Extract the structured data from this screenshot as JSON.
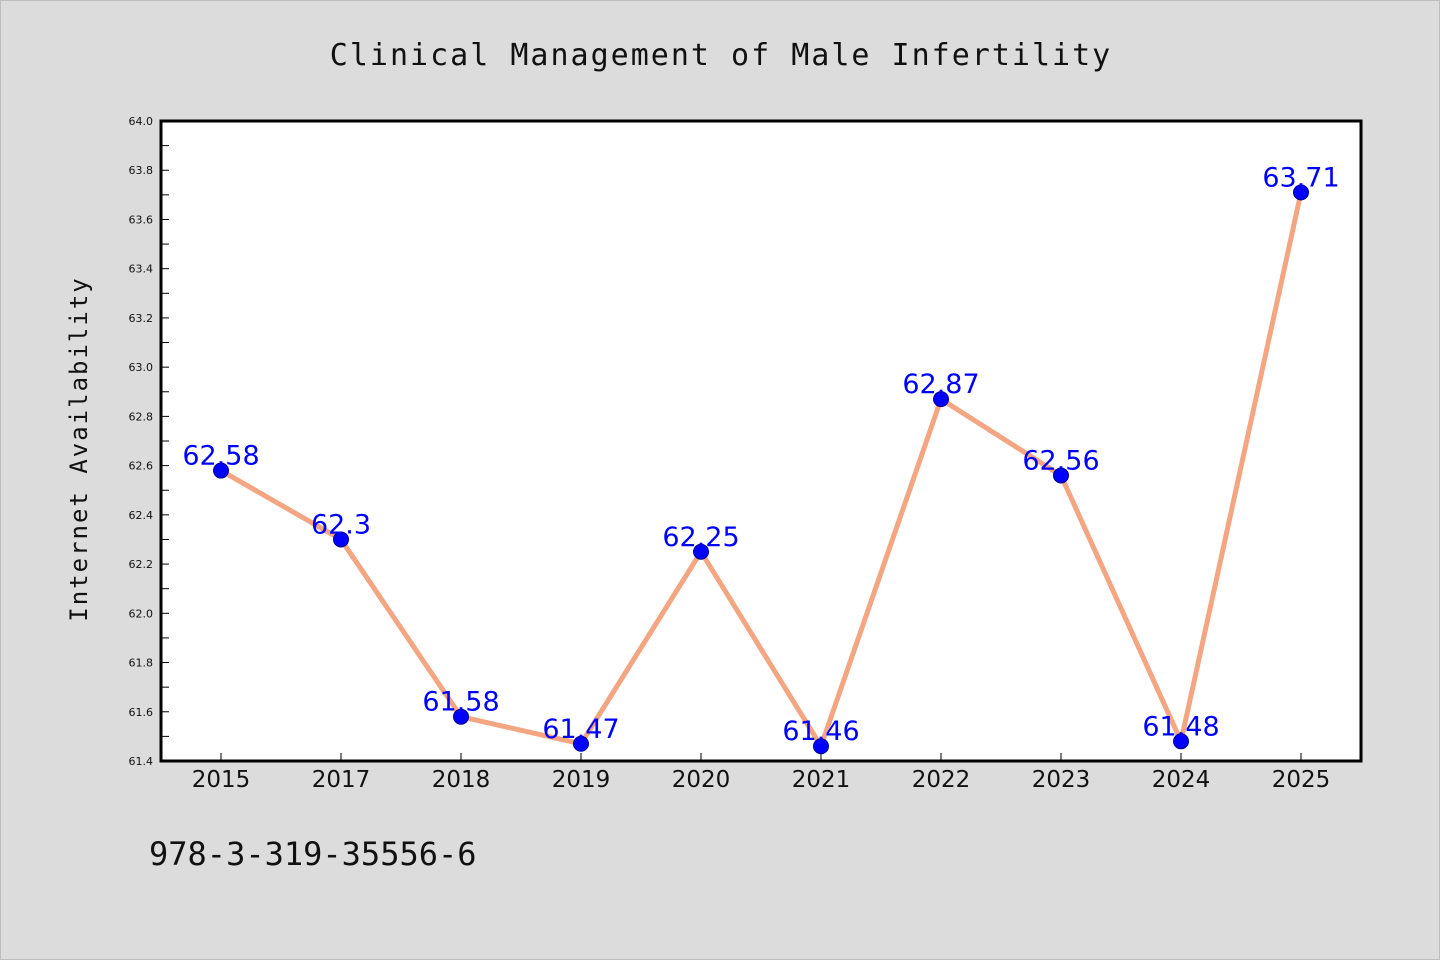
{
  "chart_data": {
    "type": "line",
    "title": "Clinical Management of Male Infertility",
    "xlabel": "",
    "ylabel": "Internet Availability",
    "categories": [
      "2015",
      "2017",
      "2018",
      "2019",
      "2020",
      "2021",
      "2022",
      "2023",
      "2024",
      "2025"
    ],
    "series": [
      {
        "values": [
          62.58,
          62.3,
          61.58,
          61.47,
          62.25,
          61.46,
          62.87,
          62.56,
          61.48,
          63.71
        ],
        "labels": [
          "62.58",
          "62.3",
          "61.58",
          "61.47",
          "62.25",
          "61.46",
          "62.87",
          "62.56",
          "61.48",
          "63.71"
        ]
      }
    ],
    "ylim": [
      61.4,
      64.0
    ],
    "yticks": [
      "61.4",
      "61.6",
      "61.8",
      "62.0",
      "62.2",
      "62.4",
      "62.6",
      "62.8",
      "63.0",
      "63.2",
      "63.4",
      "63.6",
      "63.8",
      "64.0"
    ],
    "grid": false,
    "legend": "none",
    "colors": {
      "line": "#f4a582",
      "marker": "#0000ff",
      "label": "#0000ff",
      "background": "#dcdcdc",
      "plot_background": "#ffffff"
    }
  },
  "footer": {
    "text": "978-3-319-35556-6"
  }
}
